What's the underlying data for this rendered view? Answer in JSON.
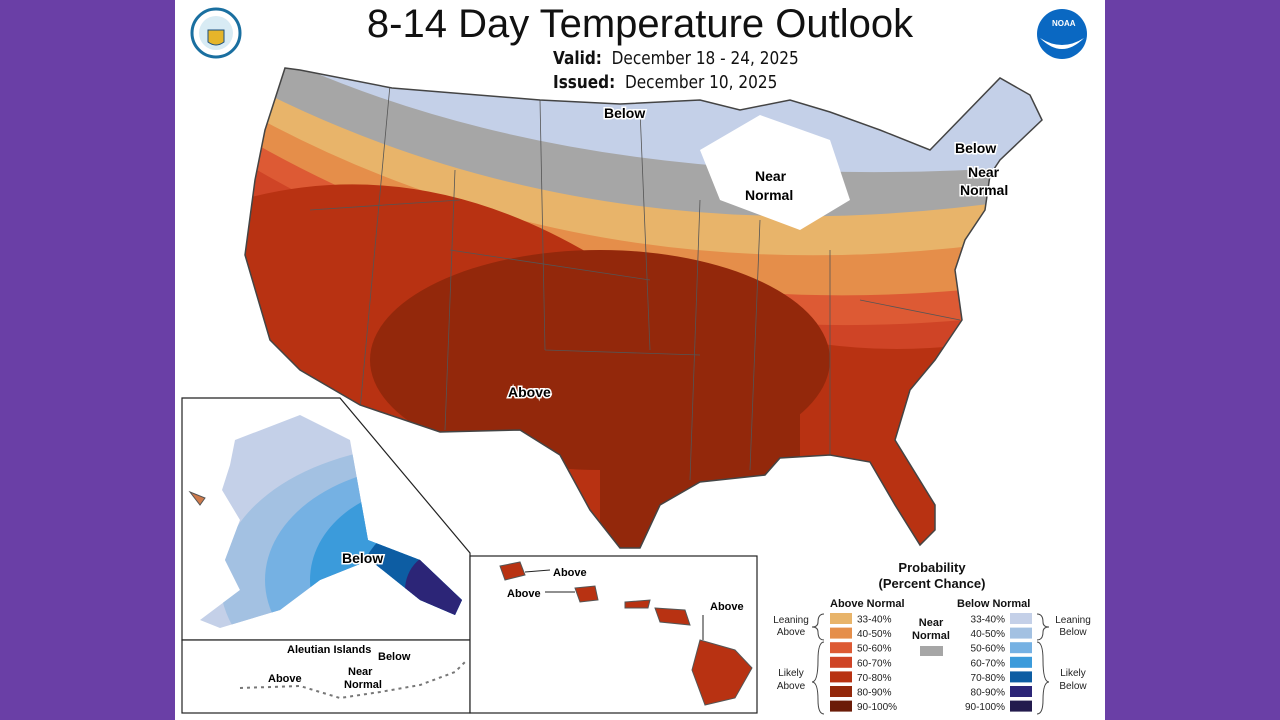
{
  "header": {
    "title": "8-14 Day Temperature Outlook",
    "valid_label": "Valid:",
    "valid_value": "December 18 - 24, 2025",
    "issued_label": "Issued:",
    "issued_value": "December 10, 2025"
  },
  "logos": {
    "left": "Department of Commerce seal",
    "right": "NOAA"
  },
  "map_labels": {
    "conus_below": "Below",
    "ne_below": "Below",
    "near_normal_1": "Near",
    "near_normal_2": "Normal",
    "ne_near_1": "Near",
    "ne_near_2": "Normal",
    "above": "Above",
    "alaska_below": "Below",
    "aleutian_title": "Aleutian Islands",
    "aleutian_below": "Below",
    "aleutian_near_1": "Near",
    "aleutian_near_2": "Normal",
    "aleutian_above": "Above",
    "hawaii_above_1": "Above",
    "hawaii_above_2": "Above",
    "hawaii_above_3": "Above"
  },
  "legend": {
    "title_1": "Probability",
    "title_2": "(Percent Chance)",
    "above_header": "Above Normal",
    "below_header": "Below Normal",
    "near_1": "Near",
    "near_2": "Normal",
    "near_color": "#a6a6a6",
    "leaning_above_1": "Leaning",
    "leaning_above_2": "Above",
    "likely_above_1": "Likely",
    "likely_above_2": "Above",
    "leaning_below_1": "Leaning",
    "leaning_below_2": "Below",
    "likely_below_1": "Likely",
    "likely_below_2": "Below",
    "above": [
      {
        "range": "33-40%",
        "color": "#e8b46a"
      },
      {
        "range": "40-50%",
        "color": "#e58e4a"
      },
      {
        "range": "50-60%",
        "color": "#dd5a34"
      },
      {
        "range": "60-70%",
        "color": "#cf4426"
      },
      {
        "range": "70-80%",
        "color": "#b83212"
      },
      {
        "range": "80-90%",
        "color": "#93280b"
      },
      {
        "range": "90-100%",
        "color": "#6b1c08"
      }
    ],
    "below": [
      {
        "range": "33-40%",
        "color": "#c4d0e8"
      },
      {
        "range": "40-50%",
        "color": "#a3c1e2"
      },
      {
        "range": "50-60%",
        "color": "#75b1e3"
      },
      {
        "range": "60-70%",
        "color": "#3b9bdb"
      },
      {
        "range": "70-80%",
        "color": "#0d5da3"
      },
      {
        "range": "80-90%",
        "color": "#2c2577"
      },
      {
        "range": "90-100%",
        "color": "#231b4d"
      }
    ]
  }
}
